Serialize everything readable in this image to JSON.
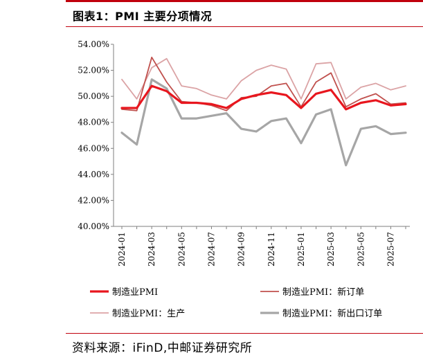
{
  "title": "图表1：PMI 主要分项情况",
  "source": "资料来源：iFinD,中邮证券研究所",
  "chart_data": {
    "type": "line",
    "title": "",
    "xlabel": "",
    "ylabel": "",
    "ylim": [
      40,
      54
    ],
    "ytick_step": 2,
    "ytick_format": "percent_2dp",
    "grid": false,
    "legend_position": "bottom",
    "x": [
      "2024-01",
      "2024-02",
      "2024-03",
      "2024-04",
      "2024-05",
      "2024-06",
      "2024-07",
      "2024-08",
      "2024-09",
      "2024-10",
      "2024-11",
      "2024-12",
      "2025-01",
      "2025-02",
      "2025-03",
      "2025-04",
      "2025-05",
      "2025-06",
      "2025-07",
      "2025-08"
    ],
    "xtick_labels": [
      "2024-01",
      "2024-03",
      "2024-05",
      "2024-07",
      "2024-09",
      "2024-11",
      "2025-01",
      "2025-03",
      "2025-05",
      "2025-07"
    ],
    "series": [
      {
        "name": "制造业PMI",
        "color": "#e8161e",
        "width": 3.2,
        "values": [
          49.1,
          49.1,
          50.8,
          50.4,
          49.5,
          49.5,
          49.4,
          49.1,
          49.8,
          50.1,
          50.3,
          50.1,
          49.1,
          50.2,
          50.5,
          49.0,
          49.5,
          49.7,
          49.3,
          49.4
        ]
      },
      {
        "name": "制造业PMI：新订单",
        "color": "#c0504d",
        "width": 1.8,
        "values": [
          49.0,
          48.9,
          53.0,
          51.1,
          49.6,
          49.5,
          49.3,
          48.9,
          49.9,
          50.0,
          50.8,
          51.0,
          49.2,
          51.1,
          51.8,
          49.2,
          49.8,
          50.2,
          49.4,
          49.5
        ]
      },
      {
        "name": "制造业PMI：生产",
        "color": "#dba3a5",
        "width": 1.8,
        "values": [
          51.3,
          49.8,
          52.2,
          52.9,
          50.8,
          50.6,
          50.1,
          49.8,
          51.2,
          52.0,
          52.4,
          52.1,
          49.8,
          52.5,
          52.6,
          49.8,
          50.7,
          51.0,
          50.5,
          50.8
        ]
      },
      {
        "name": "制造业PMI：新出口订单",
        "color": "#a6a6a6",
        "width": 3.2,
        "values": [
          47.2,
          46.3,
          51.3,
          50.6,
          48.3,
          48.3,
          48.5,
          48.7,
          47.5,
          47.3,
          48.1,
          48.3,
          46.4,
          48.6,
          49.0,
          44.7,
          47.5,
          47.7,
          47.1,
          47.2
        ]
      }
    ]
  }
}
